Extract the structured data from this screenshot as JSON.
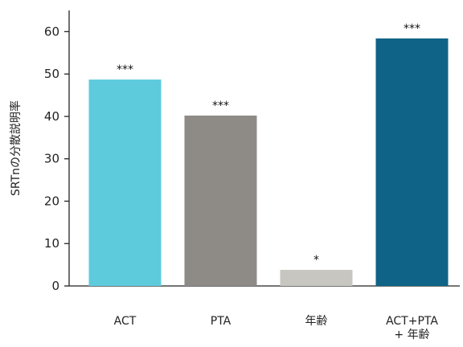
{
  "chart_data": {
    "type": "bar",
    "title": "",
    "xlabel": "",
    "ylabel": "SRTnの分散説明率",
    "ylim": [
      0,
      65
    ],
    "yticks": [
      0,
      10,
      20,
      30,
      40,
      50,
      60
    ],
    "grid": false,
    "categories": [
      "ACT",
      "PTA",
      "年齢",
      "ACT+PTA\n+ 年齢"
    ],
    "values": [
      48.7,
      40.2,
      3.8,
      58.4
    ],
    "significance": [
      "***",
      "***",
      "*",
      "***"
    ],
    "colors": [
      "#5ecbdd",
      "#8e8a86",
      "#c8c6c0",
      "#0f6386"
    ]
  }
}
